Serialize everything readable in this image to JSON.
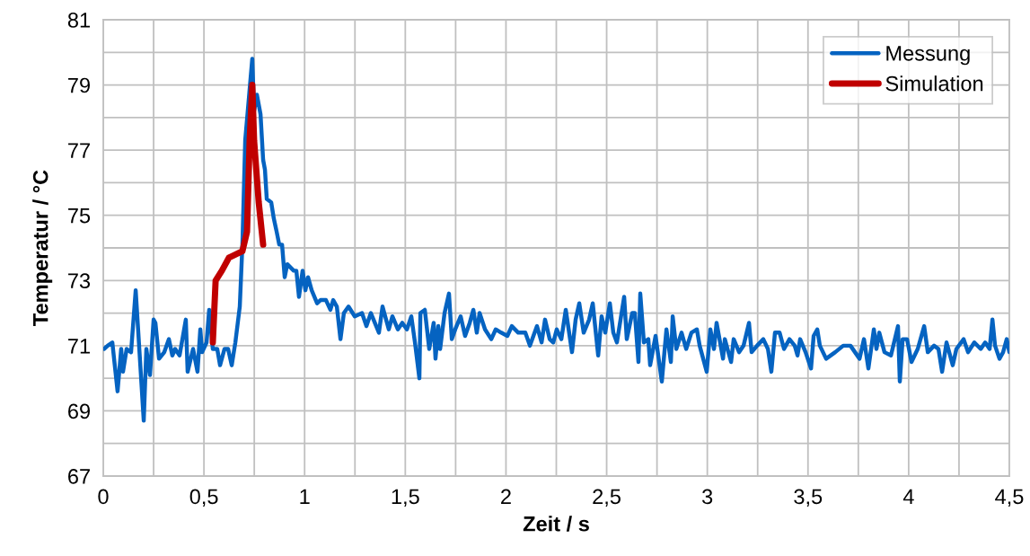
{
  "chart_data": {
    "type": "line",
    "xlabel": "Zeit / s",
    "ylabel": "Temperatur / °C",
    "xlim": [
      0,
      4.5
    ],
    "ylim": [
      67,
      81
    ],
    "xticks": [
      0,
      {
        "value": 0.25,
        "label": null
      },
      {
        "value": 0.5,
        "label": "0,5"
      },
      {
        "value": 0.75,
        "label": null
      },
      1,
      {
        "value": 1.25,
        "label": null
      },
      {
        "value": 1.5,
        "label": "1,5"
      },
      {
        "value": 1.75,
        "label": null
      },
      2,
      {
        "value": 2.25,
        "label": null
      },
      {
        "value": 2.5,
        "label": "2,5"
      },
      {
        "value": 2.75,
        "label": null
      },
      3,
      {
        "value": 3.25,
        "label": null
      },
      {
        "value": 3.5,
        "label": "3,5"
      },
      {
        "value": 3.75,
        "label": null
      },
      4,
      {
        "value": 4.25,
        "label": null
      },
      {
        "value": 4.5,
        "label": "4,5"
      }
    ],
    "yticks": [
      67,
      {
        "value": 68,
        "label": null
      },
      69,
      {
        "value": 70,
        "label": null
      },
      71,
      {
        "value": 72,
        "label": null
      },
      73,
      {
        "value": 74,
        "label": null
      },
      75,
      {
        "value": 76,
        "label": null
      },
      77,
      {
        "value": 78,
        "label": null
      },
      79,
      {
        "value": 80,
        "label": null
      },
      81
    ],
    "grid": true,
    "legend": "top right",
    "marker": "none",
    "line_style": "solid",
    "series": [
      {
        "name": "Messung",
        "color": "#0563c1",
        "x": [
          0.004,
          0.022,
          0.045,
          0.071,
          0.089,
          0.098,
          0.116,
          0.138,
          0.161,
          0.201,
          0.214,
          0.232,
          0.25,
          0.259,
          0.277,
          0.303,
          0.326,
          0.343,
          0.357,
          0.379,
          0.41,
          0.419,
          0.446,
          0.468,
          0.482,
          0.491,
          0.513,
          0.526,
          0.544,
          0.566,
          0.58,
          0.602,
          0.62,
          0.638,
          0.656,
          0.678,
          0.691,
          0.705,
          0.74,
          0.749,
          0.763,
          0.781,
          0.794,
          0.803,
          0.812,
          0.834,
          0.847,
          0.861,
          0.874,
          0.888,
          0.901,
          0.914,
          0.946,
          0.959,
          0.972,
          0.99,
          1.004,
          1.017,
          1.035,
          1.062,
          1.079,
          1.106,
          1.128,
          1.142,
          1.16,
          1.178,
          1.195,
          1.218,
          1.249,
          1.285,
          1.307,
          1.329,
          1.369,
          1.387,
          1.418,
          1.436,
          1.463,
          1.485,
          1.508,
          1.53,
          1.548,
          1.57,
          1.575,
          1.597,
          1.619,
          1.641,
          1.65,
          1.664,
          1.673,
          1.695,
          1.717,
          1.731,
          1.748,
          1.775,
          1.797,
          1.82,
          1.838,
          1.855,
          1.869,
          1.896,
          1.927,
          1.949,
          1.976,
          2.007,
          2.029,
          2.061,
          2.096,
          2.119,
          2.154,
          2.177,
          2.194,
          2.217,
          2.235,
          2.252,
          2.275,
          2.297,
          2.328,
          2.346,
          2.364,
          2.386,
          2.413,
          2.431,
          2.458,
          2.475,
          2.493,
          2.516,
          2.533,
          2.551,
          2.587,
          2.6,
          2.627,
          2.64,
          2.658,
          2.667,
          2.685,
          2.707,
          2.716,
          2.743,
          2.774,
          2.797,
          2.819,
          2.828,
          2.846,
          2.872,
          2.895,
          2.921,
          2.948,
          2.962,
          2.997,
          3.015,
          3.033,
          3.046,
          3.078,
          3.087,
          3.118,
          3.131,
          3.158,
          3.18,
          3.207,
          3.22,
          3.247,
          3.278,
          3.301,
          3.318,
          3.336,
          3.359,
          3.381,
          3.408,
          3.434,
          3.448,
          3.461,
          3.488,
          3.515,
          3.528,
          3.546,
          3.559,
          3.59,
          3.635,
          3.675,
          3.711,
          3.756,
          3.778,
          3.8,
          3.827,
          3.84,
          3.854,
          3.88,
          3.912,
          3.947,
          3.956,
          3.97,
          3.992,
          4.014,
          4.045,
          4.077,
          4.095,
          4.126,
          4.148,
          4.166,
          4.188,
          4.219,
          4.237,
          4.273,
          4.295,
          4.326,
          4.358,
          4.38,
          4.402,
          4.416,
          4.429,
          4.451,
          4.469,
          4.487,
          4.5
        ],
        "values": [
          70.9,
          71.0,
          71.1,
          69.6,
          70.9,
          70.2,
          70.9,
          70.8,
          72.7,
          68.7,
          70.9,
          70.1,
          71.8,
          71.7,
          70.6,
          70.8,
          71.2,
          70.7,
          70.9,
          70.7,
          71.8,
          70.2,
          70.9,
          70.2,
          71.5,
          70.8,
          71.1,
          72.1,
          70.9,
          70.9,
          70.4,
          70.9,
          70.9,
          70.4,
          71.1,
          72.2,
          74.1,
          77.3,
          79.8,
          78.2,
          78.7,
          78.1,
          76.7,
          76.4,
          75.5,
          75.4,
          74.9,
          74.5,
          74.1,
          74.1,
          73.1,
          73.5,
          73.3,
          73.3,
          72.5,
          73.3,
          72.7,
          73.1,
          72.7,
          72.3,
          72.4,
          72.4,
          72.1,
          72.4,
          72.2,
          71.2,
          72.0,
          72.2,
          71.9,
          72.0,
          71.6,
          72.0,
          71.4,
          72.2,
          71.5,
          71.9,
          71.5,
          71.7,
          71.5,
          71.9,
          71.1,
          70.0,
          72.0,
          72.1,
          70.9,
          71.7,
          70.6,
          71.6,
          70.9,
          72.0,
          72.6,
          71.2,
          71.5,
          71.9,
          71.3,
          71.7,
          72.1,
          71.4,
          72.0,
          71.5,
          71.2,
          71.5,
          71.4,
          71.3,
          71.6,
          71.4,
          71.4,
          71.0,
          71.6,
          71.1,
          71.8,
          71.2,
          71.1,
          71.5,
          71.2,
          72.1,
          70.8,
          71.8,
          72.3,
          71.4,
          71.8,
          72.3,
          70.7,
          71.9,
          71.4,
          72.3,
          71.4,
          71.1,
          72.5,
          71.2,
          72.0,
          72.0,
          70.5,
          72.6,
          71.1,
          71.2,
          70.4,
          71.3,
          69.9,
          71.5,
          70.5,
          71.9,
          70.9,
          71.4,
          70.9,
          71.4,
          71.5,
          71.0,
          70.2,
          71.5,
          70.9,
          71.7,
          70.6,
          71.2,
          70.5,
          71.2,
          70.8,
          71.0,
          71.7,
          70.8,
          71.0,
          71.2,
          70.9,
          70.2,
          71.4,
          71.4,
          70.9,
          71.2,
          71.0,
          70.7,
          71.2,
          70.8,
          70.3,
          71.3,
          71.5,
          71.0,
          70.6,
          70.8,
          71.0,
          71.0,
          70.6,
          71.2,
          70.3,
          71.5,
          70.9,
          71.4,
          70.8,
          70.7,
          71.6,
          69.9,
          71.2,
          71.2,
          70.5,
          70.9,
          71.6,
          70.8,
          71.0,
          70.9,
          70.2,
          71.1,
          70.4,
          70.9,
          71.2,
          70.8,
          71.1,
          70.9,
          71.1,
          70.9,
          71.8,
          71.0,
          70.6,
          70.8,
          71.2,
          70.8
        ]
      },
      {
        "name": "Simulation",
        "color": "#c00000",
        "x": [
          0.544,
          0.558,
          0.589,
          0.624,
          0.691,
          0.714,
          0.727,
          0.74,
          0.749,
          0.772,
          0.794
        ],
        "values": [
          71.1,
          73.0,
          73.3,
          73.7,
          73.9,
          74.5,
          77.3,
          79.0,
          77.3,
          75.4,
          74.1
        ]
      }
    ]
  }
}
